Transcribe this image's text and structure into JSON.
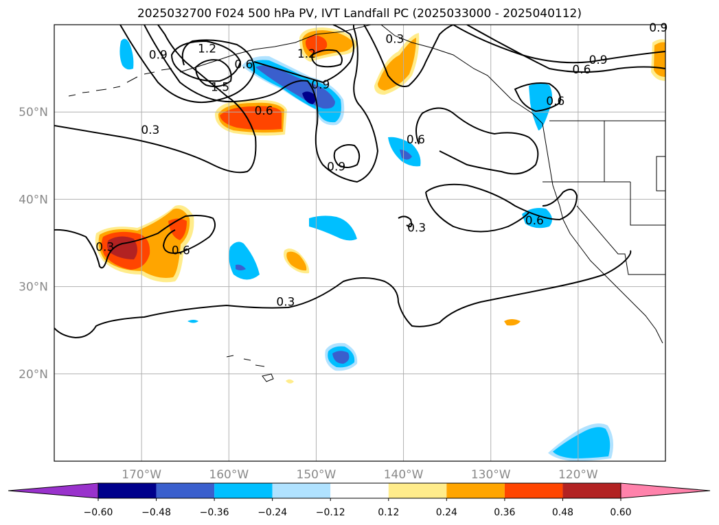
{
  "title": "2025032700 F024 500 hPa PV, IVT Landfall PC (2025033000 - 2025040112)",
  "map": {
    "lon_range": [
      -180,
      -110
    ],
    "lat_range": [
      10,
      60
    ],
    "x_ticks": [
      {
        "lon": -170,
        "label": "170°W"
      },
      {
        "lon": -160,
        "label": "160°W"
      },
      {
        "lon": -150,
        "label": "150°W"
      },
      {
        "lon": -140,
        "label": "140°W"
      },
      {
        "lon": -130,
        "label": "130°W"
      },
      {
        "lon": -120,
        "label": "120°W"
      }
    ],
    "y_ticks": [
      {
        "lat": 50,
        "label": "50°N"
      },
      {
        "lat": 40,
        "label": "40°N"
      },
      {
        "lat": 30,
        "label": "30°N"
      },
      {
        "lat": 20,
        "label": "20°N"
      }
    ],
    "grid": true,
    "contour_labels": [
      {
        "text": "0.3",
        "lon": -169,
        "lat": 47.9
      },
      {
        "text": "0.9",
        "lon": -168.1,
        "lat": 56.5
      },
      {
        "text": "1.2",
        "lon": -162.5,
        "lat": 57.2
      },
      {
        "text": "1.5",
        "lon": -161,
        "lat": 52.8
      },
      {
        "text": "0.6",
        "lon": -158.3,
        "lat": 55.4
      },
      {
        "text": "0.9",
        "lon": -149.5,
        "lat": 53.1
      },
      {
        "text": "1.2",
        "lon": -151.1,
        "lat": 56.6
      },
      {
        "text": "0.6",
        "lon": -156,
        "lat": 50.1
      },
      {
        "text": "0.9",
        "lon": -147.7,
        "lat": 43.7
      },
      {
        "text": "0.3",
        "lon": -141,
        "lat": 58.3
      },
      {
        "text": "0.6",
        "lon": -138.6,
        "lat": 46.8
      },
      {
        "text": "0.6",
        "lon": -125,
        "lat": 37.5
      },
      {
        "text": "0.3",
        "lon": -138.5,
        "lat": 36.7
      },
      {
        "text": "0.9",
        "lon": -117.7,
        "lat": 55.9
      },
      {
        "text": "0.6",
        "lon": -119.6,
        "lat": 54.8
      },
      {
        "text": "0.6",
        "lon": -122.6,
        "lat": 51.2
      },
      {
        "text": "0.6",
        "lon": -165.5,
        "lat": 34.1
      },
      {
        "text": "0.3",
        "lon": -174.2,
        "lat": 34.5
      },
      {
        "text": "0.3",
        "lon": -153.5,
        "lat": 28.2
      },
      {
        "text": "0.9",
        "lon": -110.8,
        "lat": 59.6
      }
    ]
  },
  "colorbar": {
    "levels": [
      -0.6,
      -0.48,
      -0.36,
      -0.24,
      -0.12,
      0.12,
      0.24,
      0.36,
      0.48,
      0.6
    ],
    "tick_labels": [
      "−0.60",
      "−0.48",
      "−0.36",
      "−0.24",
      "−0.12",
      "0.12",
      "0.24",
      "0.36",
      "0.48",
      "0.60"
    ],
    "colors": [
      "#9932cc",
      "#00008b",
      "#3a5fcd",
      "#00bfff",
      "#b0e2ff",
      "#ffffff",
      "#ffec8b",
      "#ffa500",
      "#ff4500",
      "#b22222",
      "#ff82ab"
    ],
    "extend": "both"
  }
}
